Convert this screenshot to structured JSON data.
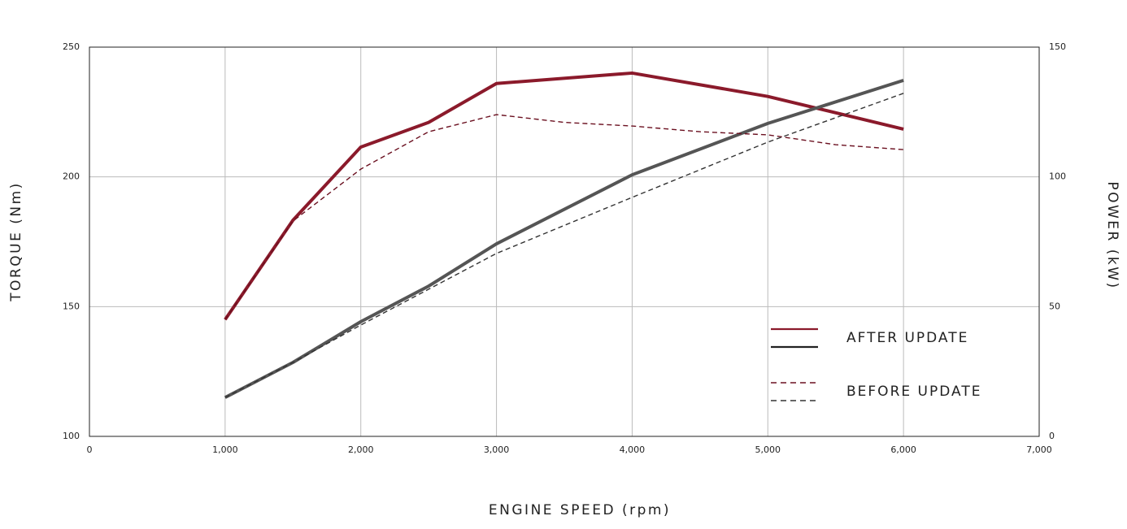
{
  "chart_data": {
    "type": "line",
    "x_label": "ENGINE SPEED (rpm)",
    "y_label": "TORQUE (Nm)",
    "y2_label": "POWER (kW)",
    "xlim": [
      0,
      7000
    ],
    "xticks": [
      0,
      {
        "value": 1000,
        "label": "1,000"
      },
      {
        "value": 2000,
        "label": "2,000"
      },
      {
        "value": 3000,
        "label": "3,000"
      },
      {
        "value": 4000,
        "label": "4,000"
      },
      {
        "value": 5000,
        "label": "5,000"
      },
      {
        "value": 6000,
        "label": "6,000"
      },
      {
        "value": 7000,
        "label": "7,000"
      }
    ],
    "ylim": [
      100,
      250
    ],
    "yticks": [
      100,
      150,
      200,
      250
    ],
    "y2lim": [
      0,
      150
    ],
    "y2ticks": [
      0,
      50,
      100,
      150
    ],
    "grid": true,
    "legend": "lower right",
    "series": [
      {
        "name": "AFTER UPDATE",
        "color": "#8b1a2b",
        "dash": false,
        "axis": "y",
        "x": [
          1000,
          1500,
          2000,
          2500,
          3000,
          4000,
          5000,
          6000
        ],
        "values": [
          145,
          183.3,
          211.5,
          221,
          236,
          240,
          231,
          218.4
        ]
      },
      {
        "name": "AFTER UPDATE",
        "color": "#555555",
        "dash": false,
        "axis": "y2",
        "x": [
          1000,
          1500,
          2000,
          2500,
          3000,
          4000,
          5000,
          6000
        ],
        "values": [
          15,
          28.5,
          44.2,
          57.9,
          74.2,
          100.8,
          120.6,
          137.2
        ]
      },
      {
        "name": "BEFORE UPDATE",
        "color": "#6b1020",
        "dash": true,
        "axis": "y",
        "x": [
          1000,
          1500,
          2000,
          2500,
          3000,
          3500,
          4000,
          4500,
          5000,
          5500,
          6000
        ],
        "values": [
          145,
          183,
          203,
          217.4,
          224,
          221,
          219.6,
          217.4,
          216.2,
          212.4,
          210.5
        ]
      },
      {
        "name": "BEFORE UPDATE",
        "color": "#333333",
        "dash": true,
        "axis": "y2",
        "x": [
          1000,
          1500,
          2000,
          2500,
          3000,
          4000,
          5000,
          6000
        ],
        "values": [
          15,
          28.5,
          42.9,
          56.7,
          70.5,
          92.1,
          113.4,
          132.2
        ]
      }
    ]
  }
}
